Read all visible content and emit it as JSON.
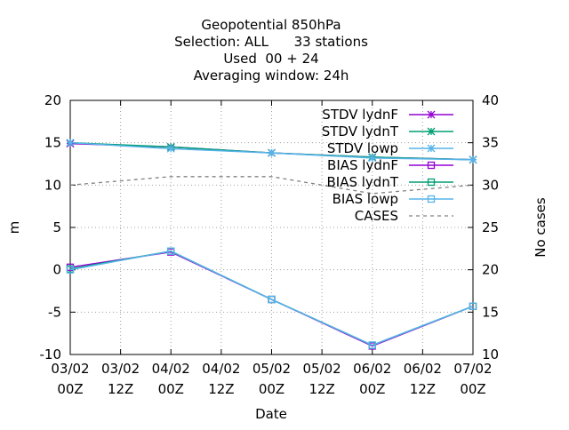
{
  "chart_data": {
    "type": "line",
    "title_lines": [
      "Geopotential 850hPa",
      "Selection: ALL      33 stations",
      "Used  00 + 24",
      "Averaging window: 24h"
    ],
    "xlabel": "Date",
    "ylabel": "m",
    "y2label": "No cases",
    "ylim": [
      -10,
      20
    ],
    "y2lim": [
      10,
      40
    ],
    "yticks": [
      -10,
      -5,
      0,
      5,
      10,
      15,
      20
    ],
    "y2ticks": [
      10,
      15,
      20,
      25,
      30,
      35,
      40
    ],
    "xticks": [
      {
        "line1": "03/02",
        "line2": "00Z"
      },
      {
        "line1": "03/02",
        "line2": "12Z"
      },
      {
        "line1": "04/02",
        "line2": "00Z"
      },
      {
        "line1": "04/02",
        "line2": "12Z"
      },
      {
        "line1": "05/02",
        "line2": "00Z"
      },
      {
        "line1": "05/02",
        "line2": "12Z"
      },
      {
        "line1": "06/02",
        "line2": "00Z"
      },
      {
        "line1": "06/02",
        "line2": "12Z"
      },
      {
        "line1": "07/02",
        "line2": "00Z"
      }
    ],
    "x": [
      0,
      2,
      4,
      6,
      8
    ],
    "grid": true,
    "legend_position": "top-right",
    "series": [
      {
        "name": "STDV lydnF",
        "values": [
          14.9,
          14.5,
          13.8,
          13.3,
          13.0
        ],
        "color": "#9400d3",
        "marker": "star",
        "dash": false,
        "axis": "y"
      },
      {
        "name": "STDV lydnT",
        "values": [
          15.0,
          14.5,
          13.8,
          13.3,
          13.0
        ],
        "color": "#009e73",
        "marker": "star",
        "dash": false,
        "axis": "y"
      },
      {
        "name": "STDV lowp",
        "values": [
          15.0,
          14.3,
          13.8,
          13.2,
          13.0
        ],
        "color": "#56b4e9",
        "marker": "star",
        "dash": false,
        "axis": "y"
      },
      {
        "name": "BIAS lydnF",
        "values": [
          0.3,
          2.1,
          -3.5,
          -9.0,
          -4.3
        ],
        "color": "#9400d3",
        "marker": "square",
        "dash": false,
        "axis": "y"
      },
      {
        "name": "BIAS lydnT",
        "values": [
          0.1,
          2.2,
          -3.5,
          -8.9,
          -4.3
        ],
        "color": "#009e73",
        "marker": "square",
        "dash": false,
        "axis": "y"
      },
      {
        "name": "BIAS lowp",
        "values": [
          0.0,
          2.2,
          -3.5,
          -8.9,
          -4.3
        ],
        "color": "#56b4e9",
        "marker": "square",
        "dash": false,
        "axis": "y"
      },
      {
        "name": "CASES",
        "values": [
          30,
          31,
          31,
          29,
          30
        ],
        "color": "#808080",
        "marker": "none",
        "dash": true,
        "axis": "y2"
      }
    ]
  }
}
